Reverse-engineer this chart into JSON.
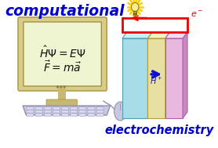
{
  "bg_color": "#ffffff",
  "text_computational": "computational",
  "text_electrochemistry": "electrochemistry",
  "text_color_main": "#0000cc",
  "monitor_screen_color": "#eef5d0",
  "monitor_body_color": "#d8cc88",
  "monitor_border_color": "#b0a050",
  "keyboard_color": "#c8c8e0",
  "keyboard_edge_color": "#9090b0",
  "stand_color": "#c8b870",
  "electrode_left_color": "#a8dce8",
  "electrode_left_top": "#c8eef8",
  "electrode_left_side": "#80b8c8",
  "electrode_mid_color": "#e8e0a0",
  "electrode_mid_top": "#f8f0c0",
  "electrode_mid_side": "#c8b870",
  "electrode_right_color": "#e8b8e0",
  "electrode_right_top": "#f8d8f8",
  "electrode_right_side": "#c888c0",
  "circuit_color": "#ee0000",
  "arrow_h_color": "#1010cc",
  "sun_color": "#ffcc00",
  "bulb_color": "#ffee88",
  "mouse_color": "#c8c8e0",
  "eq_color": "#111111",
  "e_minus_color": "#ee0000"
}
